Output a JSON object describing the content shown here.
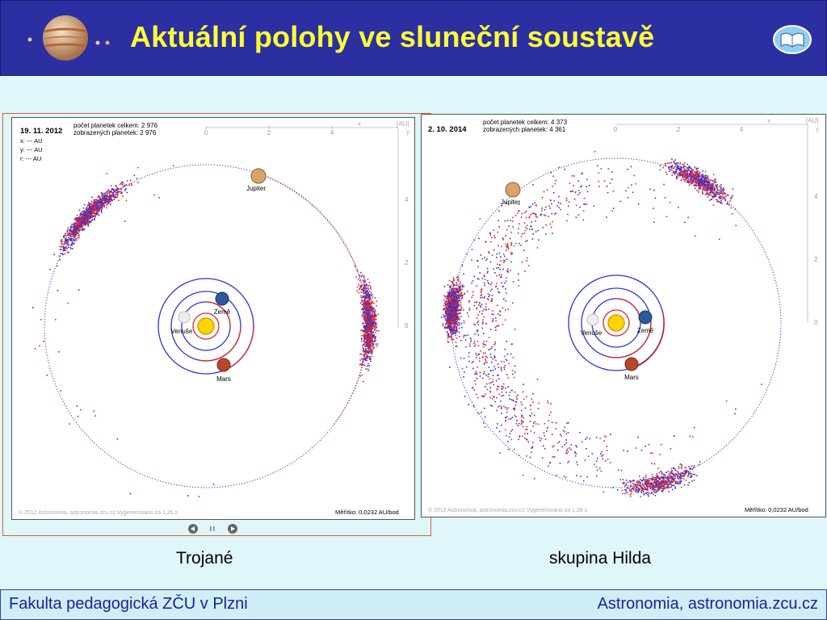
{
  "slide": {
    "title": "Aktuální polohy ve sluneční soustavě",
    "footer_left": "Fakulta pedagogická ZČU v Plzni",
    "footer_right": "Astronomia, astronomia.zcu.cz"
  },
  "panels": [
    {
      "id": "left",
      "date": "19. 11. 2012",
      "count_total": "počet planetek celkem: 2 976",
      "count_shown": "zobrazených planetek: 2 976",
      "x_line": "x: --- AU",
      "y_line": "y: --- AU",
      "r_line": "r: --- AU",
      "x_ticks": [
        "0",
        "2",
        "4"
      ],
      "y_ticks": [
        "4",
        "2",
        "0"
      ],
      "axis_x_label": "x",
      "axis_unit": "[AU]",
      "axis_y_label": "y",
      "credit": "© 2012 Astronomia, astronomia.zcu.cz    Vygenerováno za 1,26 s",
      "scale": "Měřítko: 0,0232 AU/bod",
      "caption": "Trojané",
      "labels": {
        "jupiter": "Jupiter",
        "zeme": "Země",
        "venuse": "Venuše",
        "mars": "Mars"
      }
    },
    {
      "id": "right",
      "date": "2. 10. 2014",
      "count_total": "počet planetek celkem: 4 373",
      "count_shown": "zobrazených planetek: 4 361",
      "x_ticks": [
        "0",
        "2",
        "4"
      ],
      "y_ticks": [
        "4",
        "2",
        "0"
      ],
      "axis_x_label": "x",
      "axis_unit": "[AU]",
      "axis_y_label": "y",
      "credit": "© 2012 Astronomia, astronomia.zcu.cz    Vygenerováno za 1,38 s",
      "scale": "Měřítko: 0,0232 AU/bod",
      "caption": "skupina Hilda",
      "labels": {
        "jupiter": "Jupiter",
        "zeme": "Země",
        "venuse": "Venuše",
        "mars": "Mars"
      }
    }
  ],
  "colors": {
    "red": "#e0232b",
    "blue": "#2a35d8",
    "header": "#2b2fa2",
    "title": "#ffff33"
  },
  "icons": {
    "logo": "jupiter-logo-icon",
    "help": "book-icon",
    "prev": "prev-icon",
    "pause": "pause-icon",
    "next": "next-icon"
  }
}
